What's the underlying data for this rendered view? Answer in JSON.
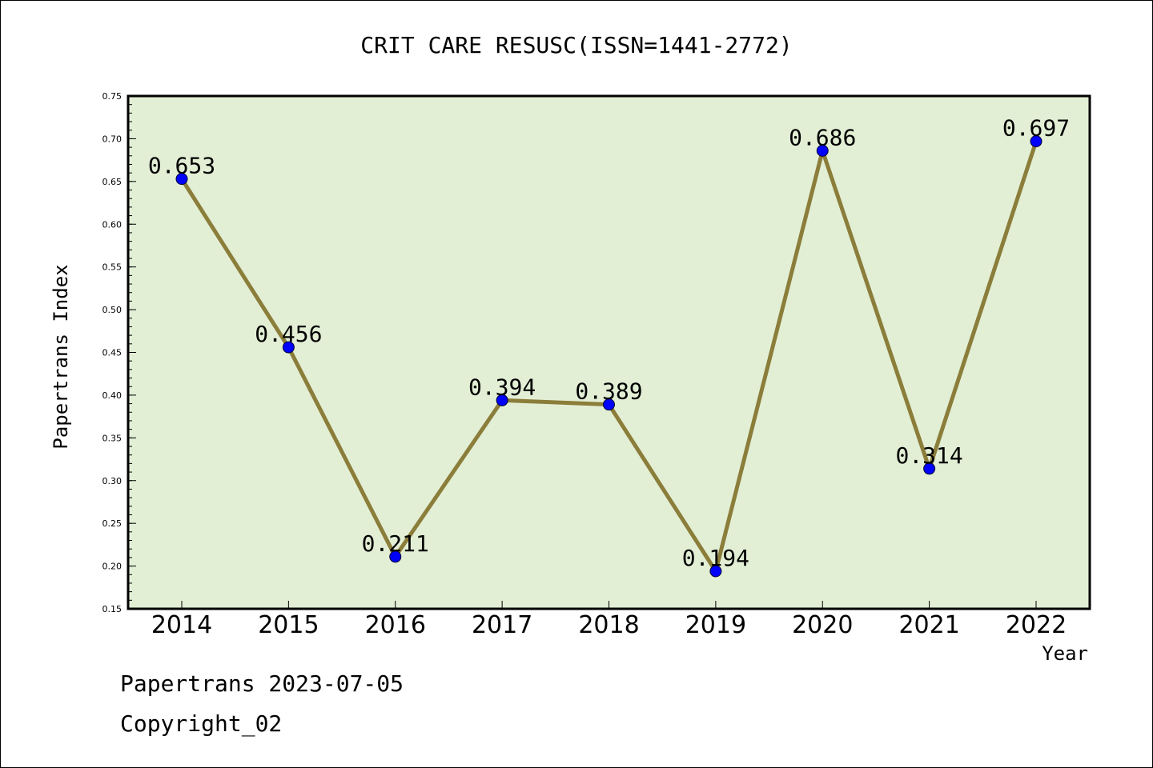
{
  "chart_data": {
    "type": "line",
    "title": "CRIT CARE RESUSC(ISSN=1441-2772)",
    "xlabel": "Year",
    "ylabel": "Papertrans Index",
    "categories": [
      "2014",
      "2015",
      "2016",
      "2017",
      "2018",
      "2019",
      "2020",
      "2021",
      "2022"
    ],
    "series": [
      {
        "values": [
          0.653,
          0.456,
          0.211,
          0.394,
          0.389,
          0.194,
          0.686,
          0.314,
          0.697
        ],
        "labels": [
          "0.653",
          "0.456",
          "0.211",
          "0.394",
          "0.389",
          "0.194",
          "0.686",
          "0.314",
          "0.697"
        ]
      }
    ],
    "ylim": [
      0.15,
      0.75
    ],
    "yticks": [
      "0.15",
      "0.20",
      "0.25",
      "0.30",
      "0.35",
      "0.40",
      "0.45",
      "0.50",
      "0.55",
      "0.60",
      "0.65",
      "0.70",
      "0.75"
    ],
    "grid": false,
    "legend": "none",
    "colors": {
      "plot_background": "#e2efd5",
      "line": "#8b7d3a",
      "marker": "#0000ff",
      "axis": "#000000"
    }
  },
  "footer": {
    "line1": "Papertrans 2023-07-05",
    "line2": "Copyright_02"
  }
}
